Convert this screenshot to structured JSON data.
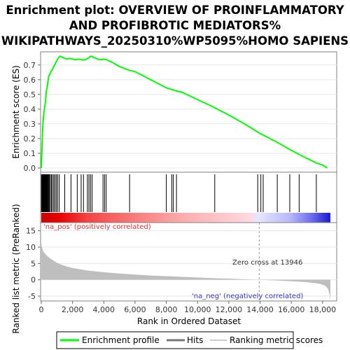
{
  "chart_data": {
    "type": "line",
    "title_lines": [
      "Enrichment plot: OVERVIEW OF PROINFLAMMATORY",
      "AND PROFIBROTIC MEDIATORS%",
      "WIKIPATHWAYS_20250310%WP5095%HOMO SAPIENS"
    ],
    "xlabel": "Rank in Ordered Dataset",
    "xlim": [
      0,
      18500
    ],
    "x_ticks": [
      "0",
      "2,000",
      "4,000",
      "6,000",
      "8,000",
      "10,000",
      "12,000",
      "14,000",
      "16,000",
      "18,000"
    ],
    "x_tick_values": [
      0,
      2000,
      4000,
      6000,
      8000,
      10000,
      12000,
      14000,
      16000,
      18000
    ],
    "es_panel": {
      "ylabel": "Enrichment score (ES)",
      "ylim": [
        0,
        0.78
      ],
      "y_ticks": [
        "0.0",
        "0.1",
        "0.2",
        "0.3",
        "0.4",
        "0.5",
        "0.6",
        "0.7"
      ],
      "y_tick_values": [
        0.0,
        0.1,
        0.2,
        0.3,
        0.4,
        0.5,
        0.6,
        0.7
      ],
      "series": {
        "name": "Enrichment profile",
        "color": "#00ff00",
        "x": [
          0,
          20,
          40,
          60,
          80,
          100,
          130,
          160,
          200,
          240,
          280,
          320,
          380,
          440,
          500,
          560,
          640,
          720,
          800,
          900,
          1000,
          1100,
          1200,
          1400,
          1600,
          1800,
          2000,
          2200,
          2400,
          2600,
          2800,
          3000,
          3100,
          3200,
          3400,
          3600,
          3800,
          4000,
          4200,
          4500,
          5000,
          5600,
          6000,
          7000,
          8000,
          8600,
          9000,
          10000,
          11000,
          12000,
          13000,
          14000,
          15000,
          16000,
          17000,
          17600,
          18000,
          18300
        ],
        "y": [
          0.0,
          0.06,
          0.12,
          0.18,
          0.24,
          0.29,
          0.33,
          0.37,
          0.4,
          0.43,
          0.46,
          0.52,
          0.55,
          0.6,
          0.63,
          0.64,
          0.66,
          0.67,
          0.69,
          0.71,
          0.73,
          0.75,
          0.76,
          0.75,
          0.74,
          0.745,
          0.74,
          0.735,
          0.74,
          0.735,
          0.735,
          0.745,
          0.755,
          0.76,
          0.75,
          0.74,
          0.735,
          0.74,
          0.735,
          0.72,
          0.69,
          0.665,
          0.655,
          0.6,
          0.545,
          0.525,
          0.515,
          0.465,
          0.415,
          0.36,
          0.3,
          0.235,
          0.18,
          0.12,
          0.065,
          0.035,
          0.02,
          0.0
        ]
      }
    },
    "hits": {
      "name": "Hits",
      "x": [
        10,
        30,
        50,
        70,
        90,
        120,
        150,
        180,
        210,
        240,
        270,
        300,
        330,
        360,
        400,
        440,
        480,
        520,
        580,
        650,
        720,
        800,
        880,
        960,
        1050,
        1150,
        1500,
        1900,
        2300,
        2550,
        2700,
        2950,
        3050,
        3150,
        3250,
        3950,
        4050,
        4150,
        5650,
        8000,
        8350,
        8450,
        8650,
        11100,
        13850,
        14050,
        14200,
        15100,
        15900,
        16500,
        17600
      ]
    },
    "ranked_metric": {
      "name": "Ranking metric scores",
      "ylabel": "Ranked list metric (PreRanked)",
      "ylim": [
        -6.5,
        17.5
      ],
      "y_ticks": [
        "-5",
        "0",
        "5",
        "10",
        "15"
      ],
      "y_tick_values": [
        -5,
        0,
        5,
        10,
        15
      ],
      "x": [
        0,
        30,
        100,
        200,
        400,
        600,
        800,
        1000,
        1300,
        1600,
        2000,
        2500,
        3000,
        4000,
        5000,
        6000,
        7000,
        8000,
        9000,
        10000,
        11000,
        12000,
        13000,
        13946,
        15000,
        16000,
        17000,
        17500,
        17800,
        18000,
        18200,
        18350,
        18450,
        18500
      ],
      "y": [
        11.5,
        10.2,
        9.0,
        8.2,
        7.2,
        6.4,
        5.8,
        5.2,
        4.6,
        4.1,
        3.6,
        3.2,
        2.8,
        2.3,
        1.9,
        1.6,
        1.3,
        1.1,
        0.9,
        0.7,
        0.5,
        0.35,
        0.15,
        0.0,
        -0.2,
        -0.45,
        -0.75,
        -1.0,
        -1.25,
        -1.5,
        -2.0,
        -2.8,
        -4.5,
        -6.3
      ]
    },
    "annotations": {
      "pos_label": "'na_pos' (positively correlated)",
      "neg_label": "'na_neg' (negatively correlated)",
      "zero_cross_label": "Zero cross at 13946",
      "zero_cross_x": 13946
    },
    "colors": {
      "profile": "#00ff00",
      "pos_text": "#e03030",
      "neg_text": "#3333cc",
      "metric_fill": "#bebebe",
      "hit_line": "#000000"
    },
    "legend": {
      "placement": "bottom",
      "items": [
        {
          "label": "Enrichment profile",
          "color": "#00ff00"
        },
        {
          "label": "Hits",
          "color": "#777777"
        },
        {
          "label": "Ranking metric scores",
          "color": "#cccccc"
        }
      ]
    }
  }
}
